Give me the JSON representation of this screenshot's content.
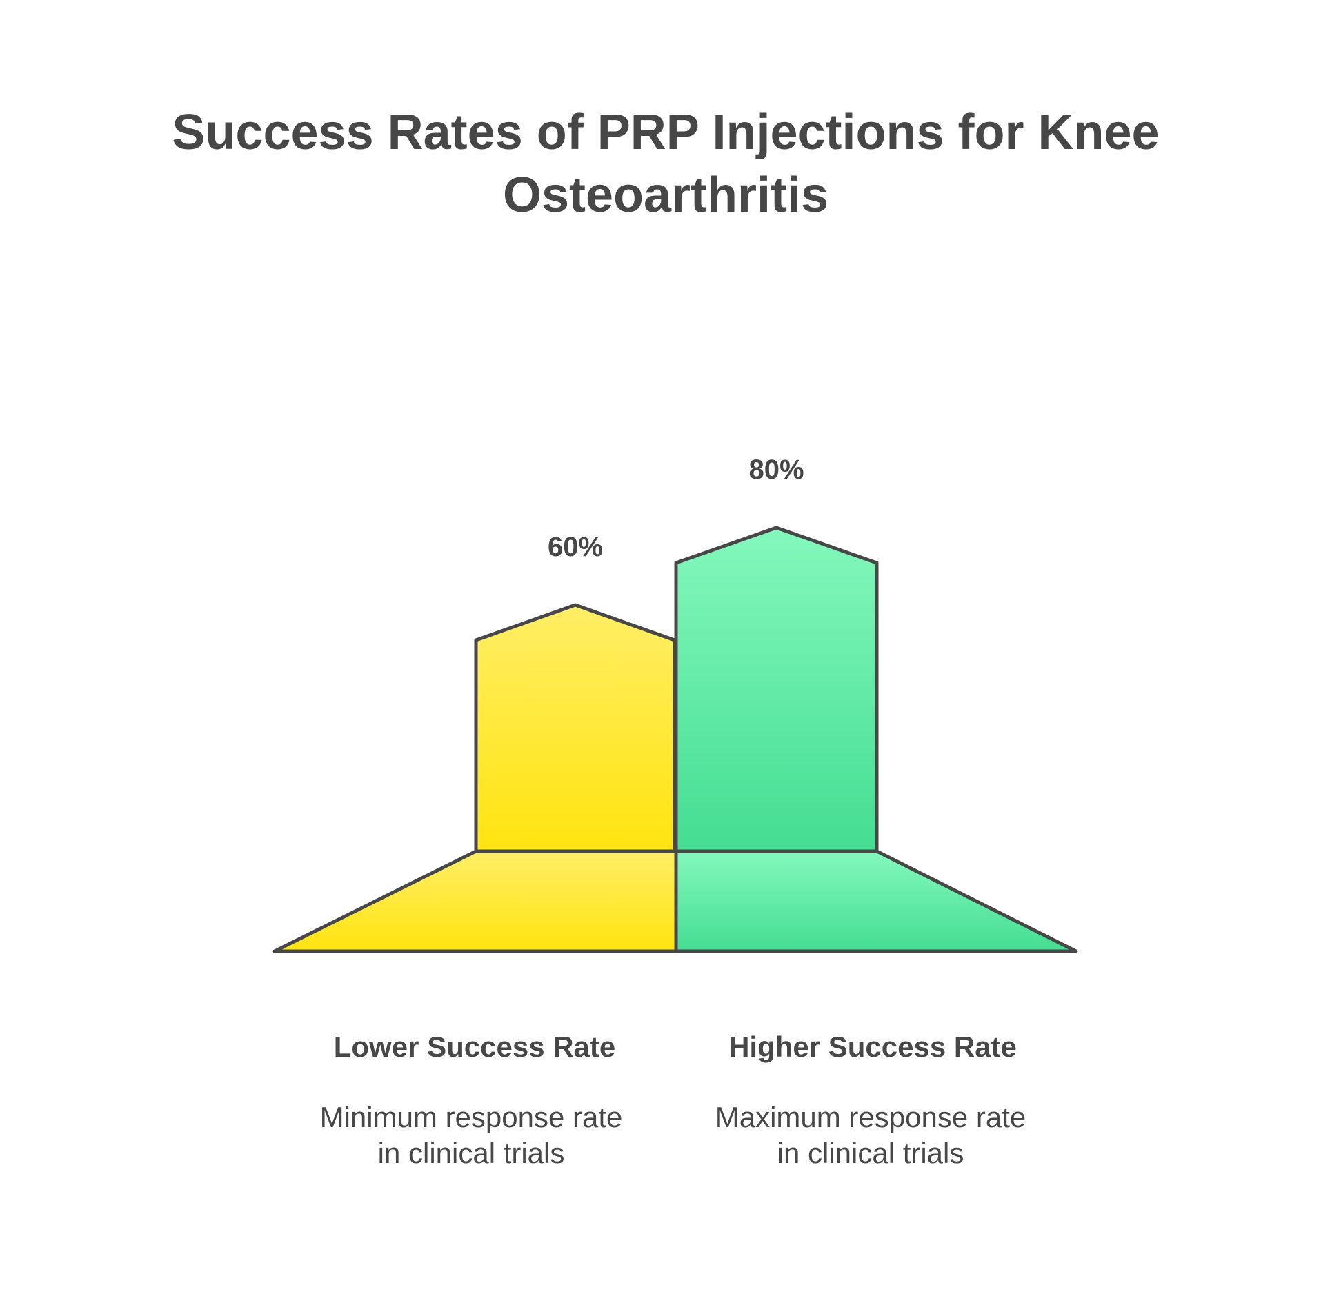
{
  "title_lines": [
    "Success Rates of PRP Injections for Knee",
    "Osteoarthritis"
  ],
  "colors": {
    "text": "#474747",
    "outline": "#474747",
    "lower_top": "#FFEE66",
    "lower_bottom": "#FFE40F",
    "higher_top": "#84F8BC",
    "higher_bottom": "#44DD92"
  },
  "chart_data": {
    "type": "bar",
    "categories": [
      "Lower Success Rate",
      "Higher Success Rate"
    ],
    "values": [
      60,
      80
    ],
    "value_labels": [
      "60%",
      "80%"
    ],
    "descriptions": [
      [
        "Minimum response rate",
        "in clinical trials"
      ],
      [
        "Maximum response rate",
        "in clinical trials"
      ]
    ],
    "title": "Success Rates of PRP Injections for Knee Osteoarthritis",
    "ylim": [
      0,
      100
    ],
    "grid": false,
    "legend": "none"
  }
}
